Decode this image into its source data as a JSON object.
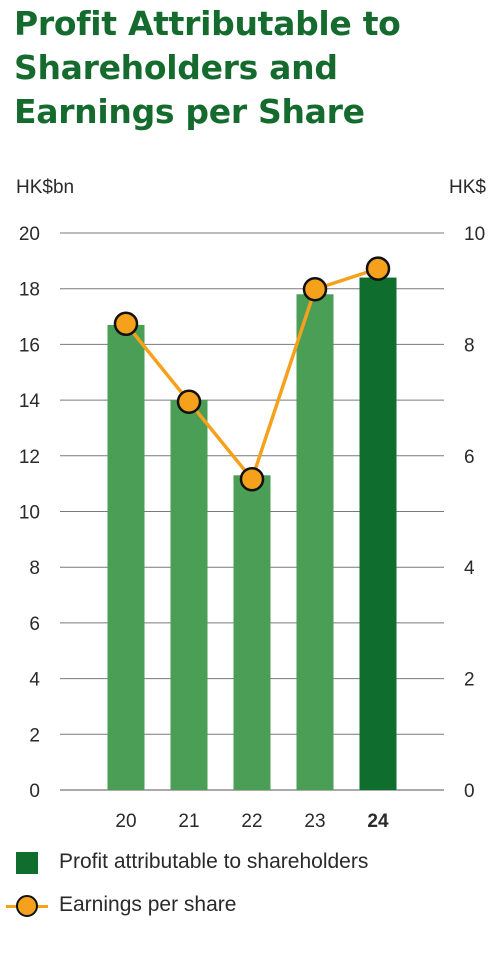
{
  "title_lines": [
    "Profit Attributable to",
    "Shareholders and",
    "Earnings per Share"
  ],
  "colors": {
    "title": "#156b2e",
    "bar": "#4a9e55",
    "bar_highlight": "#0f6e2d",
    "line": "#f5a11c",
    "marker_border": "#111111",
    "grid": "#7a7a7a",
    "text": "#2a2a2a"
  },
  "chart_data": {
    "type": "bar",
    "categories": [
      "20",
      "21",
      "22",
      "23",
      "24"
    ],
    "highlight_category": "24",
    "series": [
      {
        "name": "Profit attributable to shareholders",
        "type": "bar",
        "axis": "left",
        "values": [
          16.7,
          14.0,
          11.3,
          17.8,
          18.4
        ]
      },
      {
        "name": "Earnings per share",
        "type": "line",
        "axis": "right",
        "values": [
          8.37,
          6.97,
          5.58,
          8.99,
          9.36
        ]
      }
    ],
    "left_axis": {
      "label": "HK$bn",
      "min": 0,
      "max": 20,
      "ticks": [
        0,
        2,
        4,
        6,
        8,
        10,
        12,
        14,
        16,
        18,
        20
      ]
    },
    "right_axis": {
      "label": "HK$",
      "min": 0,
      "max": 10,
      "ticks": [
        0,
        2,
        4,
        6,
        8,
        10
      ]
    },
    "grid": true,
    "legend_position": "bottom"
  },
  "legend": {
    "items": [
      {
        "label": "Profit attributable to shareholders",
        "marker": "square"
      },
      {
        "label": "Earnings per share",
        "marker": "line-dot"
      }
    ]
  }
}
